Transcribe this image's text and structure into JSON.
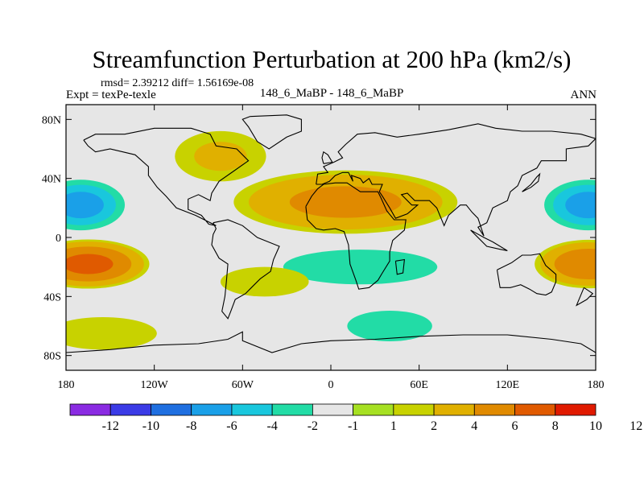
{
  "title": "Streamfunction Perturbation at 200 hPa (km2/s)",
  "stats_line": "rmsd= 2.39212 diff= 1.56169e-08",
  "left_label": "Expt = texPe-texle",
  "center_label": "148_6_MaBP - 148_6_MaBP",
  "right_label": "ANN",
  "map": {
    "lon_range": [
      -180,
      180
    ],
    "lat_range": [
      -90,
      90
    ],
    "x_ticks": [
      {
        "lon": -180,
        "label": "180"
      },
      {
        "lon": -120,
        "label": "120W"
      },
      {
        "lon": -60,
        "label": "60W"
      },
      {
        "lon": 0,
        "label": "0"
      },
      {
        "lon": 60,
        "label": "60E"
      },
      {
        "lon": 120,
        "label": "120E"
      },
      {
        "lon": 180,
        "label": "180"
      }
    ],
    "y_ticks": [
      {
        "lat": 80,
        "label": "80N"
      },
      {
        "lat": 40,
        "label": "40N"
      },
      {
        "lat": 0,
        "label": "0"
      },
      {
        "lat": -40,
        "label": "40S"
      },
      {
        "lat": -80,
        "label": "80S"
      }
    ],
    "background_color": "#e6e6e6",
    "coast_color": "#000000"
  },
  "colorbar": {
    "colors": [
      "#8a2be2",
      "#3b3be6",
      "#1f6fe0",
      "#1aa0e8",
      "#19c7dd",
      "#22dca6",
      "#e6e6e6",
      "#a6e022",
      "#c8d200",
      "#e0b000",
      "#e08a00",
      "#e05a00",
      "#e01a00"
    ],
    "labels": [
      "-12",
      "-10",
      "-8",
      "-6",
      "-4",
      "-2",
      "-1",
      "1",
      "2",
      "4",
      "6",
      "8",
      "10",
      "12"
    ]
  },
  "chart_data": {
    "type": "heatmap",
    "title": "Streamfunction Perturbation at 200 hPa (km2/s)",
    "units": "km2/s",
    "levels": [
      -12,
      -10,
      -8,
      -6,
      -4,
      -2,
      -1,
      1,
      2,
      4,
      6,
      8,
      10,
      12
    ],
    "xlim": [
      -180,
      180
    ],
    "ylim": [
      -90,
      90
    ],
    "features": [
      {
        "kind": "blob",
        "lon": -170,
        "lat": 22,
        "rlon": 35,
        "rlat": 20,
        "value": -7.5
      },
      {
        "kind": "blob",
        "lon": 175,
        "lat": 22,
        "rlon": 35,
        "rlat": 20,
        "value": -7.5
      },
      {
        "kind": "blob",
        "lon": -165,
        "lat": -18,
        "rlon": 45,
        "rlat": 18,
        "value": 7
      },
      {
        "kind": "blob",
        "lon": 175,
        "lat": -18,
        "rlon": 40,
        "rlat": 18,
        "value": 6
      },
      {
        "kind": "blob",
        "lon": 10,
        "lat": 24,
        "rlon": 85,
        "rlat": 24,
        "value": 5
      },
      {
        "kind": "blob",
        "lon": 20,
        "lat": -20,
        "rlon": 80,
        "rlat": 18,
        "value": -3.5
      },
      {
        "kind": "blob",
        "lon": 40,
        "lat": -60,
        "rlon": 50,
        "rlat": 18,
        "value": -3
      },
      {
        "kind": "blob",
        "lon": -75,
        "lat": 55,
        "rlon": 40,
        "rlat": 22,
        "value": 2.5
      },
      {
        "kind": "blob",
        "lon": -155,
        "lat": -65,
        "rlon": 60,
        "rlat": 18,
        "value": 1.6
      },
      {
        "kind": "blob",
        "lon": -150,
        "lat": 70,
        "rlon": 55,
        "rlat": 15,
        "value": -1.6
      },
      {
        "kind": "blob",
        "lon": 150,
        "lat": 60,
        "rlon": 25,
        "rlat": 20,
        "value": -1.5
      },
      {
        "kind": "blob",
        "lon": -45,
        "lat": -30,
        "rlon": 45,
        "rlat": 15,
        "value": 1.8
      }
    ]
  }
}
